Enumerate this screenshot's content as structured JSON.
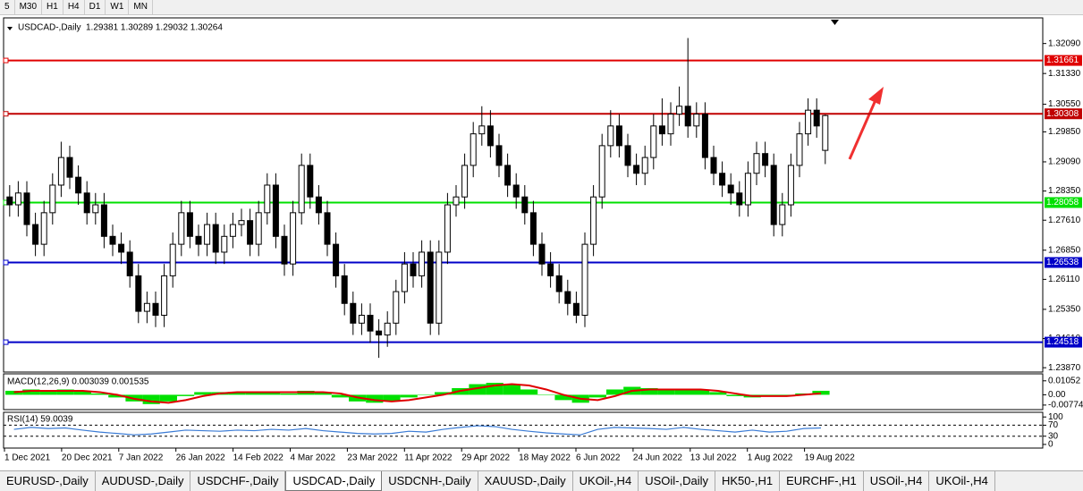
{
  "toolbar": [
    "5",
    "M30",
    "H1",
    "H4",
    "D1",
    "W1",
    "MN"
  ],
  "chart_data": [
    {
      "type": "candlestick",
      "title": "USDCAD-,Daily",
      "ohlc_label": "1.29381 1.30289 1.29032 1.30264",
      "color": "#000000",
      "open": [
        1.282,
        1.28,
        1.283,
        1.275,
        1.27,
        1.278,
        1.285,
        1.292,
        1.287,
        1.283,
        1.278,
        1.28,
        1.272,
        1.27,
        1.268,
        1.262,
        1.253,
        1.255,
        1.252,
        1.262,
        1.27,
        1.278,
        1.272,
        1.27,
        1.275,
        1.268,
        1.272,
        1.275,
        1.276,
        1.27,
        1.278,
        1.285,
        1.272,
        1.265,
        1.278,
        1.29,
        1.282,
        1.278,
        1.27,
        1.262,
        1.255,
        1.25,
        1.252,
        1.248,
        1.247,
        1.25,
        1.258,
        1.265,
        1.262,
        1.268,
        1.25,
        1.268,
        1.28,
        1.282,
        1.29,
        1.298,
        1.3,
        1.295,
        1.29,
        1.285,
        1.282,
        1.278,
        1.27,
        1.265,
        1.262,
        1.258,
        1.255,
        1.252,
        1.27,
        1.282,
        1.295,
        1.3,
        1.295,
        1.29,
        1.288,
        1.292,
        1.3,
        1.298,
        1.303,
        1.305,
        1.3,
        1.303,
        1.292,
        1.288,
        1.285,
        1.283,
        1.28,
        1.288,
        1.293,
        1.29,
        1.275,
        1.28,
        1.29,
        1.298,
        1.304,
        1.29381
      ],
      "high": [
        1.285,
        1.286,
        1.286,
        1.278,
        1.281,
        1.288,
        1.296,
        1.295,
        1.29,
        1.286,
        1.283,
        1.283,
        1.275,
        1.273,
        1.271,
        1.265,
        1.258,
        1.258,
        1.265,
        1.273,
        1.281,
        1.281,
        1.275,
        1.278,
        1.278,
        1.275,
        1.278,
        1.279,
        1.279,
        1.281,
        1.288,
        1.288,
        1.275,
        1.281,
        1.293,
        1.293,
        1.285,
        1.281,
        1.273,
        1.265,
        1.258,
        1.255,
        1.255,
        1.251,
        1.253,
        1.261,
        1.268,
        1.268,
        1.271,
        1.271,
        1.271,
        1.283,
        1.285,
        1.293,
        1.301,
        1.305,
        1.304,
        1.298,
        1.293,
        1.288,
        1.285,
        1.281,
        1.273,
        1.268,
        1.265,
        1.261,
        1.258,
        1.273,
        1.285,
        1.298,
        1.304,
        1.303,
        1.298,
        1.293,
        1.295,
        1.303,
        1.307,
        1.306,
        1.31,
        1.3223,
        1.306,
        1.306,
        1.295,
        1.291,
        1.288,
        1.286,
        1.291,
        1.296,
        1.296,
        1.293,
        1.283,
        1.293,
        1.301,
        1.307,
        1.307,
        1.30289
      ],
      "low": [
        1.277,
        1.277,
        1.272,
        1.267,
        1.267,
        1.275,
        1.282,
        1.284,
        1.28,
        1.275,
        1.275,
        1.269,
        1.267,
        1.265,
        1.259,
        1.25,
        1.25,
        1.249,
        1.249,
        1.259,
        1.267,
        1.269,
        1.267,
        1.267,
        1.265,
        1.265,
        1.269,
        1.272,
        1.267,
        1.267,
        1.275,
        1.269,
        1.262,
        1.262,
        1.275,
        1.279,
        1.275,
        1.267,
        1.259,
        1.252,
        1.247,
        1.247,
        1.245,
        1.2412,
        1.244,
        1.247,
        1.255,
        1.259,
        1.259,
        1.247,
        1.247,
        1.265,
        1.277,
        1.279,
        1.287,
        1.295,
        1.292,
        1.287,
        1.282,
        1.279,
        1.275,
        1.267,
        1.262,
        1.259,
        1.255,
        1.252,
        1.25,
        1.249,
        1.267,
        1.279,
        1.292,
        1.292,
        1.287,
        1.285,
        1.285,
        1.289,
        1.295,
        1.295,
        1.3,
        1.297,
        1.297,
        1.289,
        1.285,
        1.282,
        1.28,
        1.277,
        1.277,
        1.285,
        1.287,
        1.272,
        1.272,
        1.277,
        1.287,
        1.295,
        1.297,
        1.29032
      ],
      "close": [
        1.28,
        1.283,
        1.275,
        1.27,
        1.278,
        1.285,
        1.292,
        1.287,
        1.283,
        1.278,
        1.28,
        1.272,
        1.27,
        1.268,
        1.262,
        1.253,
        1.255,
        1.252,
        1.262,
        1.27,
        1.278,
        1.272,
        1.27,
        1.275,
        1.268,
        1.272,
        1.275,
        1.276,
        1.27,
        1.278,
        1.285,
        1.272,
        1.265,
        1.278,
        1.29,
        1.282,
        1.278,
        1.27,
        1.262,
        1.255,
        1.25,
        1.252,
        1.248,
        1.247,
        1.25,
        1.258,
        1.265,
        1.262,
        1.268,
        1.25,
        1.268,
        1.28,
        1.282,
        1.29,
        1.298,
        1.3,
        1.295,
        1.29,
        1.285,
        1.282,
        1.278,
        1.27,
        1.265,
        1.262,
        1.258,
        1.255,
        1.252,
        1.27,
        1.282,
        1.295,
        1.3,
        1.295,
        1.29,
        1.288,
        1.292,
        1.3,
        1.298,
        1.303,
        1.305,
        1.3,
        1.303,
        1.292,
        1.288,
        1.285,
        1.283,
        1.28,
        1.288,
        1.293,
        1.29,
        1.275,
        1.28,
        1.29,
        1.298,
        1.304,
        1.3,
        1.30264
      ],
      "x_labels": [
        "1 Dec 2021",
        "20 Dec 2021",
        "7 Jan 2022",
        "26 Jan 2022",
        "14 Feb 2022",
        "4 Mar 2022",
        "23 Mar 2022",
        "11 Apr 2022",
        "29 Apr 2022",
        "18 May 2022",
        "6 Jun 2022",
        "24 Jun 2022",
        "13 Jul 2022",
        "1 Aug 2022",
        "19 Aug 2022"
      ],
      "ylim": [
        1.2376,
        1.3274
      ],
      "yticks": [
        {
          "value": 1.3209,
          "label": "1.32090"
        },
        {
          "value": 1.3133,
          "label": "1.31330"
        },
        {
          "value": 1.3055,
          "label": "1.30550"
        },
        {
          "value": 1.2985,
          "label": "1.29850"
        },
        {
          "value": 1.2909,
          "label": "1.29090"
        },
        {
          "value": 1.2835,
          "label": "1.28350"
        },
        {
          "value": 1.2761,
          "label": "1.27610"
        },
        {
          "value": 1.2685,
          "label": "1.26850"
        },
        {
          "value": 1.2611,
          "label": "1.26110"
        },
        {
          "value": 1.2535,
          "label": "1.25350"
        },
        {
          "value": 1.2461,
          "label": "1.24610"
        },
        {
          "value": 1.2387,
          "label": "1.23870"
        }
      ],
      "levels": [
        {
          "value": 1.31661,
          "color": "#e00000"
        },
        {
          "value": 1.30308,
          "color": "#c00000"
        },
        {
          "value": 1.28058,
          "color": "#00e000"
        },
        {
          "value": 1.26538,
          "color": "#0000c8"
        },
        {
          "value": 1.24518,
          "color": "#0000c8"
        }
      ]
    },
    {
      "type": "macd",
      "label": "MACD(12,26,9) 0.003039 0.001535",
      "histogram": {
        "color": "#00e000",
        "values": [
          0.003,
          0.004,
          0.003,
          0.004,
          0.003,
          0.001,
          -0.002,
          -0.005,
          -0.007,
          -0.005,
          -0.001,
          0.002,
          0.002,
          0.002,
          0.002,
          0.002,
          0.001,
          0.003,
          0.002,
          -0.002,
          -0.005,
          -0.006,
          -0.005,
          -0.002,
          0.0,
          0.002,
          0.005,
          0.008,
          0.009,
          0.008,
          0.004,
          0.0,
          -0.004,
          -0.006,
          -0.002,
          0.004,
          0.006,
          0.005,
          0.004,
          0.004,
          0.004,
          0.002,
          -0.001,
          -0.002,
          -0.001,
          -0.001,
          0.001,
          0.003
        ]
      },
      "signal": {
        "color": "#e00000",
        "values": [
          0.002,
          0.003,
          0.003,
          0.003,
          0.003,
          0.002,
          0.0,
          -0.003,
          -0.005,
          -0.006,
          -0.004,
          -0.001,
          0.001,
          0.002,
          0.002,
          0.002,
          0.002,
          0.002,
          0.002,
          0.001,
          -0.002,
          -0.004,
          -0.005,
          -0.004,
          -0.002,
          0.0,
          0.003,
          0.005,
          0.007,
          0.008,
          0.007,
          0.004,
          0.0,
          -0.003,
          -0.004,
          -0.001,
          0.003,
          0.004,
          0.004,
          0.004,
          0.004,
          0.003,
          0.001,
          -0.001,
          -0.001,
          -0.001,
          0.0,
          0.001
        ]
      },
      "ylim": [
        -0.0105,
        0.0151
      ],
      "yticks": [
        0.01052,
        {
          "value": 0,
          "label": "0.00"
        },
        -0.007744
      ]
    },
    {
      "type": "rsi",
      "label": "RSI(14) 59.0039",
      "color": "#3a7bd5",
      "values": [
        55,
        62,
        58,
        60,
        52,
        45,
        40,
        35,
        38,
        45,
        52,
        50,
        48,
        52,
        50,
        55,
        52,
        58,
        50,
        45,
        40,
        38,
        40,
        48,
        45,
        55,
        62,
        68,
        65,
        55,
        48,
        42,
        38,
        35,
        55,
        62,
        60,
        58,
        55,
        62,
        55,
        50,
        45,
        52,
        45,
        48,
        58,
        60
      ],
      "ylim": [
        -10,
        117
      ],
      "yticks": [
        100,
        70,
        30,
        0
      ],
      "levels": [
        70,
        30
      ]
    }
  ],
  "tabs": [
    "EURUSD-,Daily",
    "AUDUSD-,Daily",
    "USDCHF-,Daily",
    "USDCAD-,Daily",
    "USDCNH-,Daily",
    "XAUUSD-,Daily",
    "UKOil-,H4",
    "USOil-,Daily",
    "HK50-,H1",
    "EURCHF-,H1",
    "USOil-,H4",
    "UKOil-,H4"
  ],
  "active_tab": 3
}
